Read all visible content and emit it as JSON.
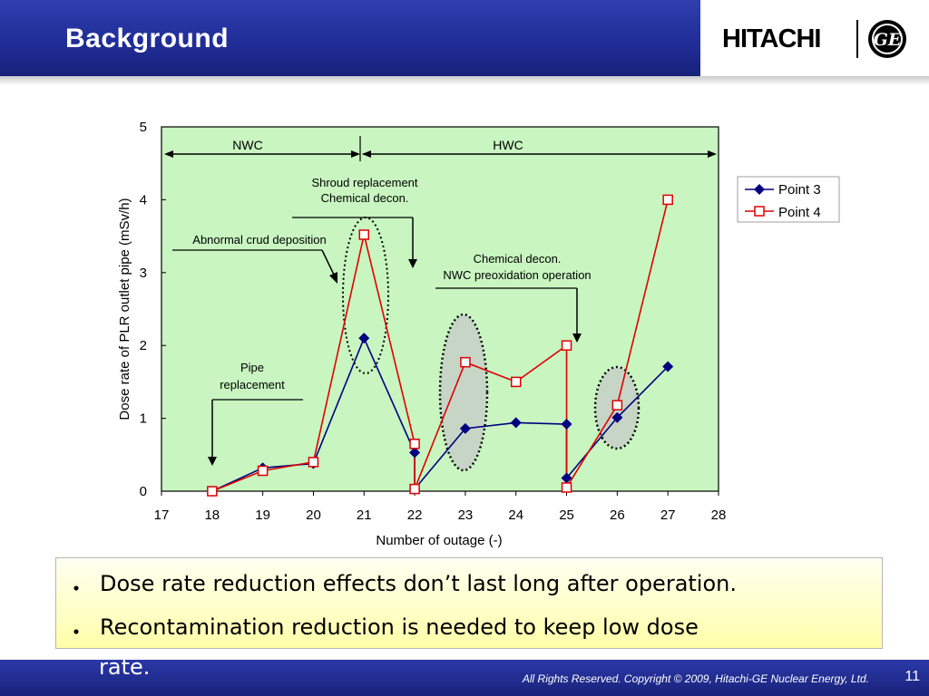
{
  "slide": {
    "title": "Background",
    "logo": {
      "brand": "HITACHI",
      "mark": "GE"
    },
    "footer": "All Rights Reserved. Copyright © 2009, Hitachi-GE Nuclear Energy, Ltd.",
    "page_number": "11"
  },
  "bullets": {
    "marker": "・",
    "items": [
      "Dose rate reduction effects don’t last long after operation.",
      "Recontamination reduction is needed to keep low dose",
      "rate."
    ]
  },
  "colors": {
    "header": "#1f2c96",
    "plot_bg": "#c8f5c0",
    "point3": "#000080",
    "point4": "#e00000",
    "bullet_box": "#ffffa8"
  },
  "chart_data": {
    "type": "line",
    "xlabel": "Number of outage (-)",
    "ylabel": "Dose rate of PLR outlet pipe (mSv/h)",
    "xlim": [
      17,
      28
    ],
    "ylim": [
      0,
      5
    ],
    "xticks": [
      17,
      18,
      19,
      20,
      21,
      22,
      23,
      24,
      25,
      26,
      27,
      28
    ],
    "yticks": [
      0,
      1,
      2,
      3,
      4,
      5
    ],
    "legend_position": "right",
    "grid": false,
    "series": [
      {
        "name": "Point 3",
        "marker": "diamond",
        "color": "#000080",
        "points": [
          [
            18,
            0.0
          ],
          [
            19,
            0.32
          ],
          [
            20,
            0.38
          ],
          [
            21,
            2.1
          ],
          [
            22,
            0.53
          ],
          [
            22,
            0.03
          ],
          [
            23,
            0.86
          ],
          [
            24,
            0.94
          ],
          [
            25,
            0.92
          ],
          [
            25,
            0.18
          ],
          [
            26,
            1.01
          ],
          [
            27,
            1.71
          ]
        ]
      },
      {
        "name": "Point 4",
        "marker": "square",
        "color": "#e00000",
        "points": [
          [
            18,
            0.0
          ],
          [
            19,
            0.28
          ],
          [
            20,
            0.4
          ],
          [
            21,
            3.52
          ],
          [
            22,
            0.65
          ],
          [
            22,
            0.03
          ],
          [
            23,
            1.77
          ],
          [
            24,
            1.5
          ],
          [
            25,
            2.0
          ],
          [
            25,
            0.05
          ],
          [
            26,
            1.18
          ],
          [
            27,
            4.0
          ]
        ]
      }
    ],
    "annotations": {
      "nwc": "NWC",
      "hwc": "HWC",
      "shroud1": "Shroud replacement",
      "shroud2": "Chemical decon.",
      "abnormal": "Abnormal crud deposition",
      "chem1": "Chemical decon.",
      "chem2": "NWC preoxidation operation",
      "pipe1": "Pipe",
      "pipe2": "replacement"
    }
  }
}
